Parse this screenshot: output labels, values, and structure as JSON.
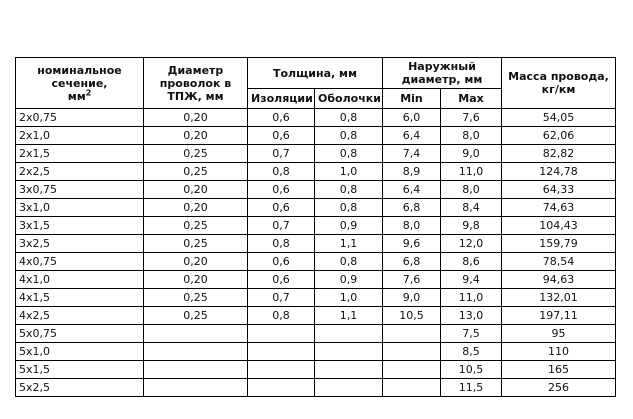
{
  "table": {
    "headers": {
      "section_line1": "номинальное",
      "section_line2": "сечение,",
      "section_unit": "мм",
      "section_unit_exp": "2",
      "wire_diameter": "Диаметр проволок в ТПЖ, мм",
      "thickness": "Толщина, мм",
      "insulation": "Изоляции",
      "sheath": "Оболочки",
      "outer_diameter": "Наружный диаметр, мм",
      "min": "Min",
      "max": "Max",
      "mass": "Масса провода, кг/км"
    },
    "rows": [
      [
        "2x0,75",
        "0,20",
        "0,6",
        "0,8",
        "6,0",
        "7,6",
        "54,05"
      ],
      [
        "2x1,0",
        "0,20",
        "0,6",
        "0,8",
        "6,4",
        "8,0",
        "62,06"
      ],
      [
        "2x1,5",
        "0,25",
        "0,7",
        "0,8",
        "7,4",
        "9,0",
        "82,82"
      ],
      [
        "2x2,5",
        "0,25",
        "0,8",
        "1,0",
        "8,9",
        "11,0",
        "124,78"
      ],
      [
        "3x0,75",
        "0,20",
        "0,6",
        "0,8",
        "6,4",
        "8,0",
        "64,33"
      ],
      [
        "3x1,0",
        "0,20",
        "0,6",
        "0,8",
        "6,8",
        "8,4",
        "74,63"
      ],
      [
        "3x1,5",
        "0,25",
        "0,7",
        "0,9",
        "8,0",
        "9,8",
        "104,43"
      ],
      [
        "3x2,5",
        "0,25",
        "0,8",
        "1,1",
        "9,6",
        "12,0",
        "159,79"
      ],
      [
        "4x0,75",
        "0,20",
        "0,6",
        "0,8",
        "6,8",
        "8,6",
        "78,54"
      ],
      [
        "4x1,0",
        "0,20",
        "0,6",
        "0,9",
        "7,6",
        "9,4",
        "94,63"
      ],
      [
        "4x1,5",
        "0,25",
        "0,7",
        "1,0",
        "9,0",
        "11,0",
        "132,01"
      ],
      [
        "4x2,5",
        "0,25",
        "0,8",
        "1,1",
        "10,5",
        "13,0",
        "197,11"
      ],
      [
        "5x0,75",
        "",
        "",
        "",
        "",
        "7,5",
        "95"
      ],
      [
        "5x1,0",
        "",
        "",
        "",
        "",
        "8,5",
        "110"
      ],
      [
        "5x1,5",
        "",
        "",
        "",
        "",
        "10,5",
        "165"
      ],
      [
        "5x2,5",
        "",
        "",
        "",
        "",
        "11,5",
        "256"
      ]
    ]
  }
}
